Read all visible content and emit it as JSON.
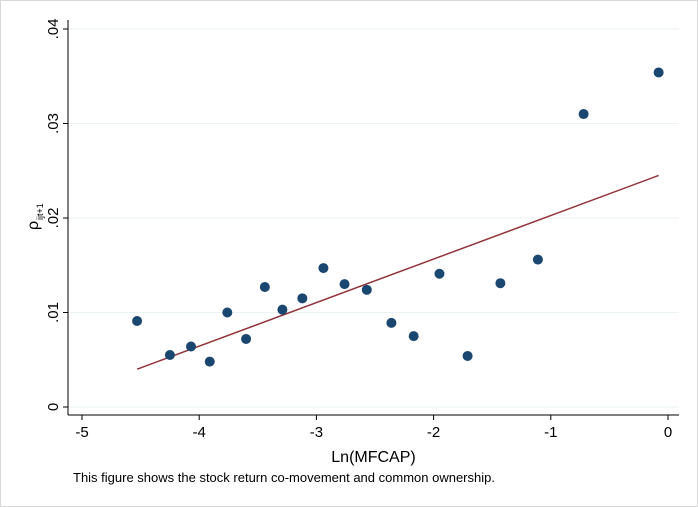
{
  "chart_data": {
    "type": "scatter",
    "xlabel": "Ln(MFCAP)",
    "ylabel_symbol": "ρ",
    "ylabel_subscript": "ijt+1",
    "xlim": [
      -5,
      0
    ],
    "ylim": [
      0,
      0.04
    ],
    "x_ticks": [
      {
        "value": -5,
        "label": "-5"
      },
      {
        "value": -4,
        "label": "-4"
      },
      {
        "value": -3,
        "label": "-3"
      },
      {
        "value": -2,
        "label": "-2"
      },
      {
        "value": -1,
        "label": "-1"
      },
      {
        "value": 0,
        "label": "0"
      }
    ],
    "y_ticks": [
      {
        "value": 0,
        "label": "0"
      },
      {
        "value": 0.01,
        "label": ".01"
      },
      {
        "value": 0.02,
        "label": ".02"
      },
      {
        "value": 0.03,
        "label": ".03"
      },
      {
        "value": 0.04,
        "label": ".04"
      }
    ],
    "grid": "horizontal",
    "points": [
      {
        "x": -4.53,
        "y": 0.0091
      },
      {
        "x": -4.25,
        "y": 0.0055
      },
      {
        "x": -4.07,
        "y": 0.0064
      },
      {
        "x": -3.91,
        "y": 0.0048
      },
      {
        "x": -3.76,
        "y": 0.01
      },
      {
        "x": -3.6,
        "y": 0.0072
      },
      {
        "x": -3.44,
        "y": 0.0127
      },
      {
        "x": -3.29,
        "y": 0.0103
      },
      {
        "x": -3.12,
        "y": 0.0115
      },
      {
        "x": -2.94,
        "y": 0.0147
      },
      {
        "x": -2.76,
        "y": 0.013
      },
      {
        "x": -2.57,
        "y": 0.0124
      },
      {
        "x": -2.36,
        "y": 0.0089
      },
      {
        "x": -2.17,
        "y": 0.0075
      },
      {
        "x": -1.95,
        "y": 0.0141
      },
      {
        "x": -1.71,
        "y": 0.0054
      },
      {
        "x": -1.43,
        "y": 0.0131
      },
      {
        "x": -1.11,
        "y": 0.0156
      },
      {
        "x": -0.72,
        "y": 0.031
      },
      {
        "x": -0.08,
        "y": 0.0354
      }
    ],
    "fit_line": {
      "x1": -4.53,
      "y1": 0.004,
      "x2": -0.08,
      "y2": 0.0245
    },
    "colors": {
      "points": "#1a476f",
      "fit": "#90353b",
      "grid": "#eaf2f3"
    }
  },
  "caption": "This figure shows the stock return co-movement and common ownership."
}
